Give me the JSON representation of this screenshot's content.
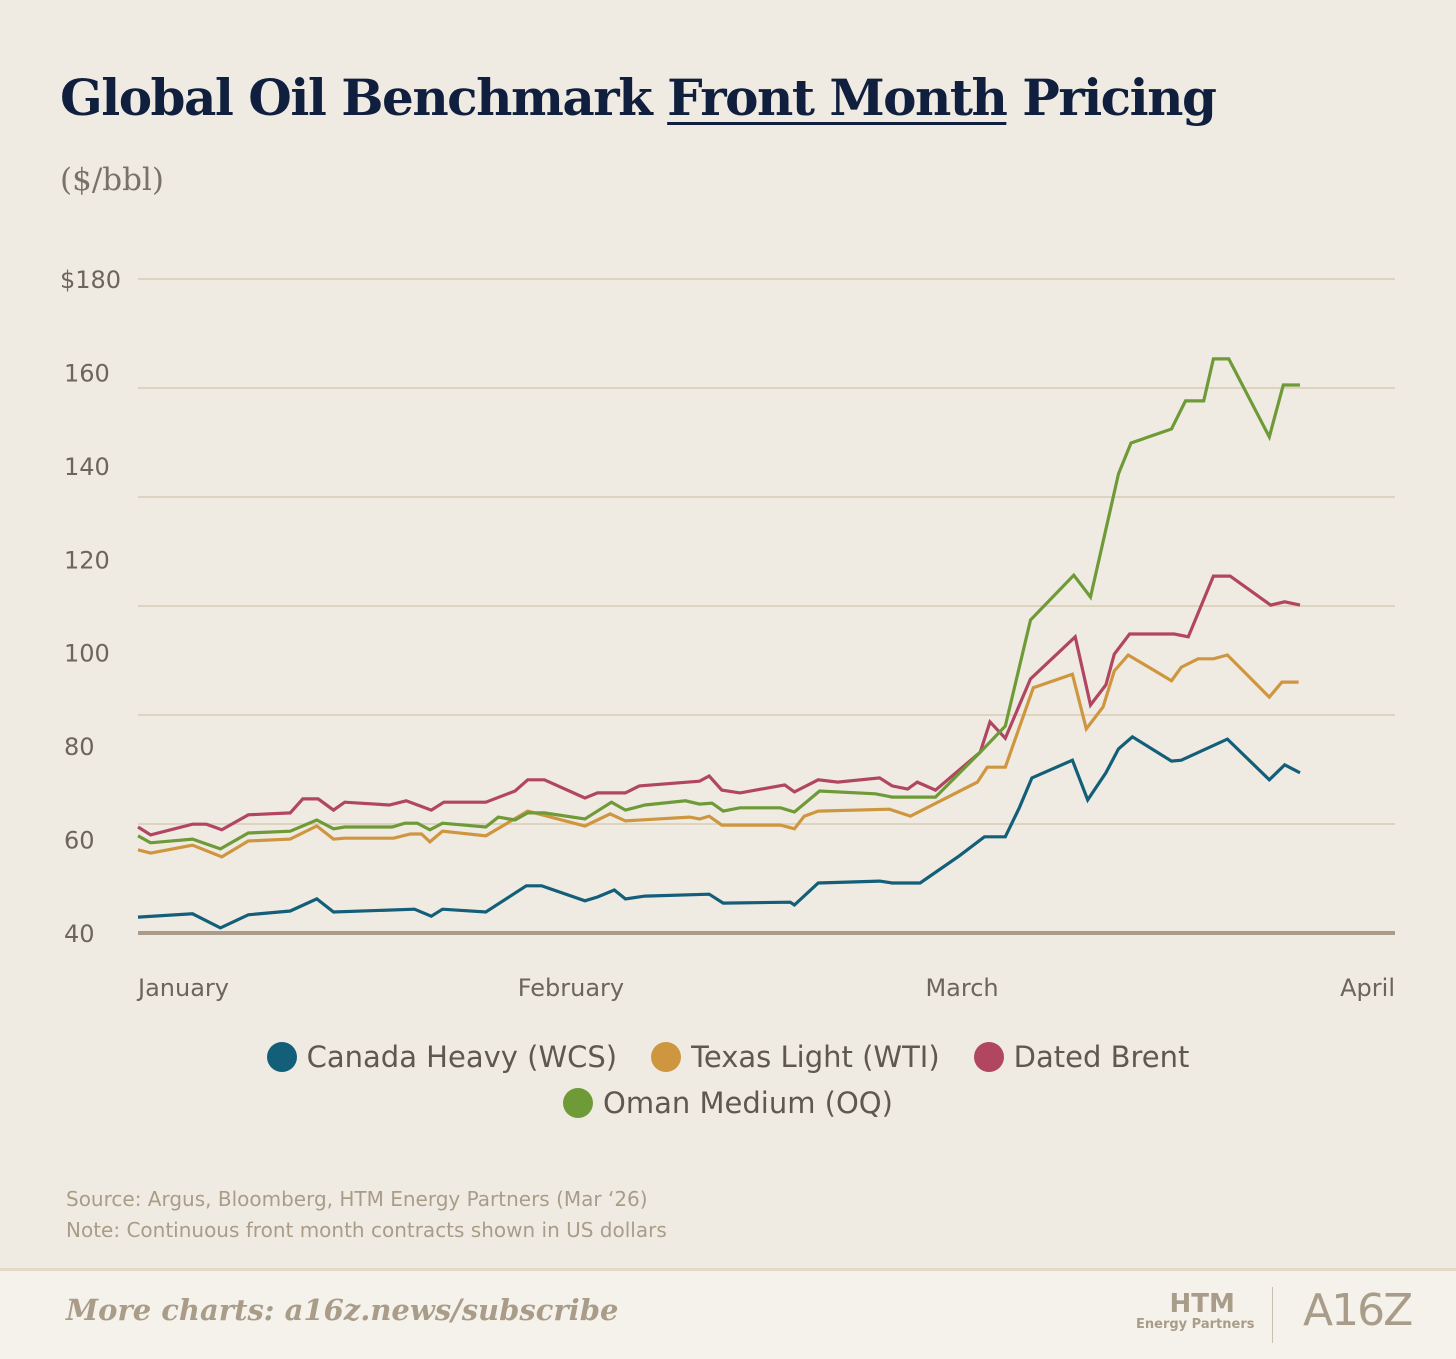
{
  "header": {
    "title_pre": "Global Oil Benchmark ",
    "title_underlined": "Front Month",
    "title_post": " Pricing",
    "unit": "($/bbl)"
  },
  "chart_data": {
    "type": "line",
    "title": "Global Oil Benchmark Front Month Pricing",
    "ylabel": "($/bbl)",
    "xlabel": "",
    "x_unit": "days since Jan 1",
    "xlim": [
      0,
      90
    ],
    "ylim": [
      40,
      180
    ],
    "y_ticks": [
      "$180",
      "160",
      "140",
      "120",
      "100",
      "80",
      "60",
      "40"
    ],
    "x_ticks": [
      {
        "label": "January",
        "day": 0
      },
      {
        "label": "February",
        "day": 31
      },
      {
        "label": "March",
        "day": 59
      },
      {
        "label": "April",
        "day": 90
      }
    ],
    "grid": true,
    "legend_position": "bottom",
    "series": [
      {
        "name": "Canada Heavy (WCS)",
        "color": "#135e79",
        "points": [
          [
            0,
            43.4
          ],
          [
            3.9,
            44.1
          ],
          [
            5.9,
            41.1
          ],
          [
            7.9,
            43.9
          ],
          [
            10.9,
            44.7
          ],
          [
            12.8,
            47.3
          ],
          [
            14,
            44.5
          ],
          [
            19.8,
            45.1
          ],
          [
            21,
            43.6
          ],
          [
            21.8,
            45.1
          ],
          [
            24.9,
            44.5
          ],
          [
            27.8,
            50.1
          ],
          [
            28.9,
            50.1
          ],
          [
            32,
            46.9
          ],
          [
            32.9,
            47.7
          ],
          [
            34.1,
            49.2
          ],
          [
            34.9,
            47.3
          ],
          [
            36.3,
            47.9
          ],
          [
            40.9,
            48.3
          ],
          [
            41.9,
            46.4
          ],
          [
            46.7,
            46.6
          ],
          [
            47,
            46
          ],
          [
            48.7,
            50.7
          ],
          [
            53.1,
            51.1
          ],
          [
            54,
            50.7
          ],
          [
            56,
            50.7
          ],
          [
            58.8,
            56.5
          ],
          [
            60.6,
            60.6
          ],
          [
            62.1,
            60.6
          ],
          [
            63.1,
            66.8
          ],
          [
            64,
            73.2
          ],
          [
            66.9,
            77
          ],
          [
            68,
            68.5
          ],
          [
            69.3,
            74.3
          ],
          [
            70.2,
            79.4
          ],
          [
            71.2,
            82
          ],
          [
            74,
            76.8
          ],
          [
            74.7,
            77
          ],
          [
            78,
            81.5
          ],
          [
            81,
            72.8
          ],
          [
            82.1,
            76
          ],
          [
            83.2,
            74.3
          ]
        ]
      },
      {
        "name": "Texas Light (WTI)",
        "color": "#cf9640",
        "points": [
          [
            0,
            57.8
          ],
          [
            0.9,
            57.1
          ],
          [
            3.9,
            58.8
          ],
          [
            6,
            56.3
          ],
          [
            7.9,
            59.7
          ],
          [
            10.9,
            60.1
          ],
          [
            12.8,
            62.9
          ],
          [
            14,
            60.1
          ],
          [
            14.8,
            60.3
          ],
          [
            18.3,
            60.3
          ],
          [
            19.5,
            61.2
          ],
          [
            20.3,
            61.2
          ],
          [
            20.9,
            59.5
          ],
          [
            21.8,
            61.8
          ],
          [
            24.9,
            60.8
          ],
          [
            26.1,
            62.9
          ],
          [
            27.9,
            66.1
          ],
          [
            32,
            62.9
          ],
          [
            33.8,
            65.5
          ],
          [
            34.9,
            64
          ],
          [
            39.5,
            64.8
          ],
          [
            40.2,
            64.4
          ],
          [
            40.9,
            65
          ],
          [
            41.8,
            63.1
          ],
          [
            46,
            63.1
          ],
          [
            47,
            62.3
          ],
          [
            47.7,
            65
          ],
          [
            48.7,
            66.1
          ],
          [
            53.8,
            66.5
          ],
          [
            55.3,
            65
          ],
          [
            60.1,
            72.3
          ],
          [
            60.8,
            75.5
          ],
          [
            62.1,
            75.5
          ],
          [
            64.1,
            92.5
          ],
          [
            66.9,
            95.4
          ],
          [
            67.9,
            83.7
          ],
          [
            69.1,
            88.4
          ],
          [
            69.9,
            96.1
          ],
          [
            70.9,
            99.5
          ],
          [
            74,
            94
          ],
          [
            74.7,
            96.9
          ],
          [
            75.9,
            98.7
          ],
          [
            77,
            98.7
          ],
          [
            78,
            99.5
          ],
          [
            81,
            90.5
          ],
          [
            81.9,
            93.7
          ],
          [
            83.1,
            93.7
          ]
        ]
      },
      {
        "name": "Dated Brent",
        "color": "#b14660",
        "points": [
          [
            0,
            62.7
          ],
          [
            0.9,
            61
          ],
          [
            3.9,
            63.3
          ],
          [
            4.9,
            63.3
          ],
          [
            6,
            62.1
          ],
          [
            7.9,
            65.3
          ],
          [
            10.9,
            65.7
          ],
          [
            11.8,
            68.7
          ],
          [
            12.9,
            68.7
          ],
          [
            14,
            66.3
          ],
          [
            14.8,
            68
          ],
          [
            18,
            67.4
          ],
          [
            19.2,
            68.3
          ],
          [
            21,
            66.3
          ],
          [
            21.9,
            68
          ],
          [
            24.9,
            68
          ],
          [
            27,
            70.4
          ],
          [
            27.9,
            72.8
          ],
          [
            29.1,
            72.8
          ],
          [
            32,
            68.9
          ],
          [
            32.9,
            70
          ],
          [
            34.9,
            70
          ],
          [
            35.9,
            71.5
          ],
          [
            40.2,
            72.5
          ],
          [
            40.9,
            73.6
          ],
          [
            41.8,
            70.6
          ],
          [
            43.1,
            70
          ],
          [
            46.3,
            71.7
          ],
          [
            47,
            70.2
          ],
          [
            48.7,
            72.8
          ],
          [
            50.1,
            72.3
          ],
          [
            53.1,
            73.2
          ],
          [
            54,
            71.5
          ],
          [
            55.1,
            70.8
          ],
          [
            55.8,
            72.3
          ],
          [
            57.1,
            70.6
          ],
          [
            60.3,
            78.7
          ],
          [
            61,
            85.2
          ],
          [
            62.1,
            81.7
          ],
          [
            63.9,
            94.4
          ],
          [
            67.1,
            103.4
          ],
          [
            68.2,
            88.8
          ],
          [
            69.3,
            93.1
          ],
          [
            69.9,
            99.7
          ],
          [
            71,
            104
          ],
          [
            74.2,
            104
          ],
          [
            75.2,
            103.4
          ],
          [
            77,
            116.4
          ],
          [
            78.2,
            116.4
          ],
          [
            81.1,
            110.2
          ],
          [
            82.1,
            110.9
          ],
          [
            83.2,
            110.2
          ]
        ]
      },
      {
        "name": "Oman Medium (OQ)",
        "color": "#6e9a37",
        "points": [
          [
            0,
            60.8
          ],
          [
            0.9,
            59.3
          ],
          [
            3.9,
            60.1
          ],
          [
            5.9,
            58
          ],
          [
            7.9,
            61.4
          ],
          [
            10.9,
            61.8
          ],
          [
            12.8,
            64.2
          ],
          [
            14,
            62.3
          ],
          [
            14.8,
            62.7
          ],
          [
            18.2,
            62.7
          ],
          [
            19.1,
            63.5
          ],
          [
            20,
            63.5
          ],
          [
            20.9,
            62.1
          ],
          [
            21.8,
            63.5
          ],
          [
            24.9,
            62.7
          ],
          [
            25.8,
            64.8
          ],
          [
            27,
            64.2
          ],
          [
            27.9,
            65.7
          ],
          [
            29.1,
            65.7
          ],
          [
            32,
            64.4
          ],
          [
            33.9,
            68
          ],
          [
            34.9,
            66.3
          ],
          [
            36.3,
            67.4
          ],
          [
            39.2,
            68.3
          ],
          [
            40.2,
            67.6
          ],
          [
            41.1,
            67.8
          ],
          [
            41.9,
            66.1
          ],
          [
            43.1,
            66.8
          ],
          [
            46,
            66.8
          ],
          [
            47,
            65.9
          ],
          [
            48.8,
            70.4
          ],
          [
            52.8,
            69.8
          ],
          [
            54,
            69.1
          ],
          [
            57.1,
            69.1
          ],
          [
            60.3,
            78.7
          ],
          [
            62.1,
            84.3
          ],
          [
            63.9,
            107
          ],
          [
            67,
            116.6
          ],
          [
            68.2,
            111.9
          ],
          [
            70.2,
            138.3
          ],
          [
            71.1,
            144.9
          ],
          [
            74,
            147.9
          ],
          [
            75,
            153.9
          ],
          [
            76.3,
            153.9
          ],
          [
            77,
            162.9
          ],
          [
            78.1,
            162.9
          ],
          [
            81,
            146.2
          ],
          [
            82,
            157.3
          ],
          [
            83.2,
            157.3
          ]
        ]
      }
    ]
  },
  "notes": {
    "source": "Source: Argus, Bloomberg, HTM Energy Partners (Mar ‘26)",
    "note": "Note: Continuous front month contracts shown in US dollars"
  },
  "footer": {
    "more": "More charts: a16z.news/subscribe",
    "logo1_big": "HTM",
    "logo1_small": "Energy Partners",
    "logo2": "A16Z"
  }
}
